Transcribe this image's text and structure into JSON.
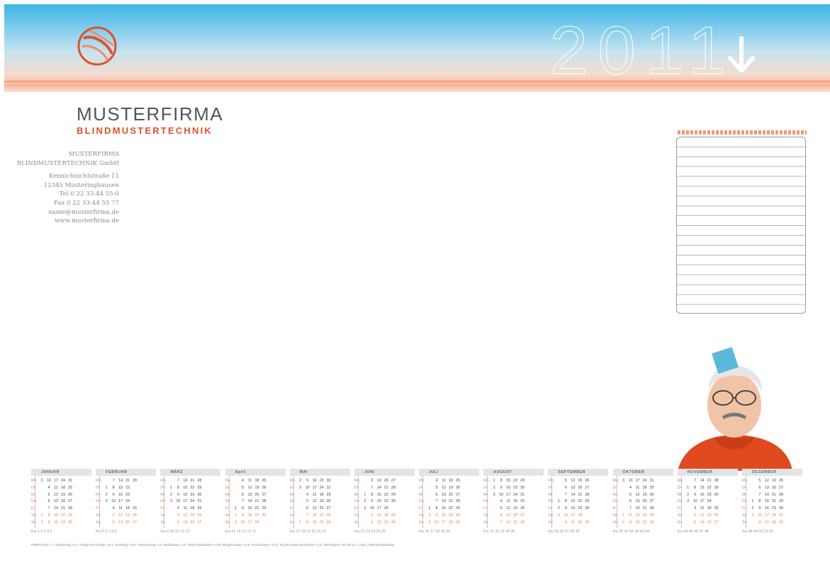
{
  "header": {
    "year": "2011",
    "arrow_icon": "down-arrow-icon",
    "logo_icon": "globe-swirl-icon"
  },
  "brand": {
    "name": "MUSTERFIRMA",
    "sub": "BLINDMUSTERTECHNIK"
  },
  "address": [
    "MUSTERFIRMA",
    "BLINDMUSTERTECHNIK GmbH",
    "",
    "Kennichnichtstraße 11",
    "12345 Musteringhausen",
    "Tel 0 22 33-44 55-0",
    "Fax 0 22 33-44 55 77",
    "name@musterfirma.de",
    "www.musterfirma.de"
  ],
  "calendar": {
    "weekday_labels": [
      "Mo",
      "Di",
      "Mi",
      "Do",
      "Fr",
      "Sa",
      "So"
    ],
    "kw_label": "Kw",
    "months": [
      {
        "name": "JANUAR",
        "rows": [
          [
            "3",
            "10",
            "17",
            "24",
            "31"
          ],
          [
            "4",
            "11",
            "18",
            "25"
          ],
          [
            "5",
            "12",
            "19",
            "26"
          ],
          [
            "6",
            "13",
            "20",
            "27"
          ],
          [
            "7",
            "14",
            "21",
            "28"
          ],
          [
            "1",
            "8",
            "15",
            "22",
            "29"
          ],
          [
            "2",
            "9",
            "16",
            "23",
            "30"
          ]
        ],
        "kw": "1 2 3 4 5"
      },
      {
        "name": "FEBRUAR",
        "rows": [
          [
            "7",
            "14",
            "21",
            "28"
          ],
          [
            "1",
            "8",
            "15",
            "22"
          ],
          [
            "2",
            "9",
            "16",
            "23"
          ],
          [
            "3",
            "10",
            "17",
            "24"
          ],
          [
            "4",
            "11",
            "18",
            "25"
          ],
          [
            "5",
            "12",
            "19",
            "26"
          ],
          [
            "6",
            "13",
            "20",
            "27"
          ]
        ],
        "kw": "5 6 7 8 9"
      },
      {
        "name": "MÄRZ",
        "rows": [
          [
            "7",
            "14",
            "21",
            "28"
          ],
          [
            "1",
            "8",
            "15",
            "22",
            "29"
          ],
          [
            "2",
            "9",
            "16",
            "23",
            "30"
          ],
          [
            "3",
            "10",
            "17",
            "24",
            "31"
          ],
          [
            "4",
            "11",
            "18",
            "25"
          ],
          [
            "5",
            "12",
            "19",
            "26"
          ],
          [
            "6",
            "13",
            "20",
            "27"
          ]
        ],
        "kw": "9 10 11 12 13"
      },
      {
        "name": "April",
        "rows": [
          [
            "4",
            "11",
            "18",
            "25"
          ],
          [
            "5",
            "12",
            "19",
            "26"
          ],
          [
            "6",
            "13",
            "20",
            "27"
          ],
          [
            "7",
            "14",
            "21",
            "28"
          ],
          [
            "1",
            "8",
            "15",
            "22",
            "29"
          ],
          [
            "2",
            "9",
            "16",
            "23",
            "30"
          ],
          [
            "3",
            "10",
            "17",
            "24"
          ]
        ],
        "kw": "13 14 15 16 17"
      },
      {
        "name": "MAI",
        "rows": [
          [
            "2",
            "9",
            "16",
            "23",
            "30"
          ],
          [
            "3",
            "10",
            "17",
            "24",
            "31"
          ],
          [
            "4",
            "11",
            "18",
            "25"
          ],
          [
            "5",
            "12",
            "19",
            "26"
          ],
          [
            "6",
            "13",
            "20",
            "27"
          ],
          [
            "7",
            "14",
            "21",
            "28"
          ],
          [
            "1",
            "8",
            "15",
            "22",
            "29"
          ]
        ],
        "kw": "17 18 19 20 21 22"
      },
      {
        "name": "JUNI",
        "rows": [
          [
            "6",
            "13",
            "20",
            "27"
          ],
          [
            "7",
            "14",
            "21",
            "28"
          ],
          [
            "1",
            "8",
            "15",
            "22",
            "29"
          ],
          [
            "2",
            "9",
            "16",
            "23",
            "30"
          ],
          [
            "3",
            "10",
            "17",
            "24"
          ],
          [
            "4",
            "11",
            "18",
            "25"
          ],
          [
            "5",
            "12",
            "19",
            "26"
          ]
        ],
        "kw": "22 23 24 25 26"
      },
      {
        "name": "JULI",
        "rows": [
          [
            "4",
            "11",
            "18",
            "25"
          ],
          [
            "5",
            "12",
            "19",
            "26"
          ],
          [
            "6",
            "13",
            "20",
            "27"
          ],
          [
            "7",
            "14",
            "21",
            "28"
          ],
          [
            "1",
            "8",
            "15",
            "22",
            "29"
          ],
          [
            "2",
            "9",
            "16",
            "23",
            "30"
          ],
          [
            "3",
            "10",
            "17",
            "24",
            "31"
          ]
        ],
        "kw": "26 27 28 29 30"
      },
      {
        "name": "AUGUST",
        "rows": [
          [
            "1",
            "8",
            "15",
            "22",
            "29"
          ],
          [
            "2",
            "9",
            "16",
            "23",
            "30"
          ],
          [
            "3",
            "10",
            "17",
            "24",
            "31"
          ],
          [
            "4",
            "11",
            "18",
            "25"
          ],
          [
            "5",
            "12",
            "19",
            "26"
          ],
          [
            "6",
            "13",
            "20",
            "27"
          ],
          [
            "7",
            "14",
            "21",
            "28"
          ]
        ],
        "kw": "31 32 33 34 35"
      },
      {
        "name": "SEPTEMBER",
        "rows": [
          [
            "5",
            "12",
            "19",
            "26"
          ],
          [
            "6",
            "13",
            "20",
            "27"
          ],
          [
            "7",
            "14",
            "21",
            "28"
          ],
          [
            "1",
            "8",
            "15",
            "22",
            "29"
          ],
          [
            "2",
            "9",
            "16",
            "23",
            "30"
          ],
          [
            "3",
            "10",
            "17",
            "24"
          ],
          [
            "4",
            "11",
            "18",
            "25"
          ]
        ],
        "kw": "35 36 37 38 39"
      },
      {
        "name": "OKTOBER",
        "rows": [
          [
            "3",
            "10",
            "17",
            "24",
            "31"
          ],
          [
            "4",
            "11",
            "18",
            "25"
          ],
          [
            "5",
            "12",
            "19",
            "26"
          ],
          [
            "6",
            "13",
            "20",
            "27"
          ],
          [
            "7",
            "14",
            "21",
            "28"
          ],
          [
            "1",
            "8",
            "15",
            "22",
            "29"
          ],
          [
            "2",
            "9",
            "16",
            "23",
            "30"
          ]
        ],
        "kw": "39 40 41 42 43 44"
      },
      {
        "name": "NOVEMBER",
        "rows": [
          [
            "7",
            "14",
            "21",
            "28"
          ],
          [
            "1",
            "8",
            "15",
            "22",
            "29"
          ],
          [
            "2",
            "9",
            "16",
            "23",
            "30"
          ],
          [
            "3",
            "10",
            "17",
            "24"
          ],
          [
            "4",
            "11",
            "18",
            "25"
          ],
          [
            "5",
            "12",
            "19",
            "26"
          ],
          [
            "6",
            "13",
            "20",
            "27"
          ]
        ],
        "kw": "44 45 46 47 48"
      },
      {
        "name": "DEZEMBER",
        "rows": [
          [
            "5",
            "12",
            "19",
            "26"
          ],
          [
            "6",
            "13",
            "20",
            "27"
          ],
          [
            "7",
            "14",
            "21",
            "28"
          ],
          [
            "1",
            "8",
            "15",
            "22",
            "29"
          ],
          [
            "2",
            "9",
            "16",
            "23",
            "30"
          ],
          [
            "3",
            "10",
            "17",
            "24",
            "31"
          ],
          [
            "4",
            "11",
            "18",
            "25"
          ]
        ],
        "kw": "48 49 50 51 52"
      }
    ]
  },
  "footer": {
    "text": "FEIERTAGE: 1.1. Neujahrstag • 6.1. Heilige Drei Könige • 22.4. Karfreitag • 25.4. Ostermontag • 1.5. Maifeiertag • 2.6. Christi Himmelfahrt • 13.6. Pfingstmontag • 23.6. Fronleichnam • 3.10. Tag der deutschen Einheit • 1.11. Allerheiligen • 25./26.12. 1. und 2. Weihnachtsfeiertag"
  },
  "colors": {
    "accent": "#e0502a",
    "sky": "#3fb6e8"
  }
}
